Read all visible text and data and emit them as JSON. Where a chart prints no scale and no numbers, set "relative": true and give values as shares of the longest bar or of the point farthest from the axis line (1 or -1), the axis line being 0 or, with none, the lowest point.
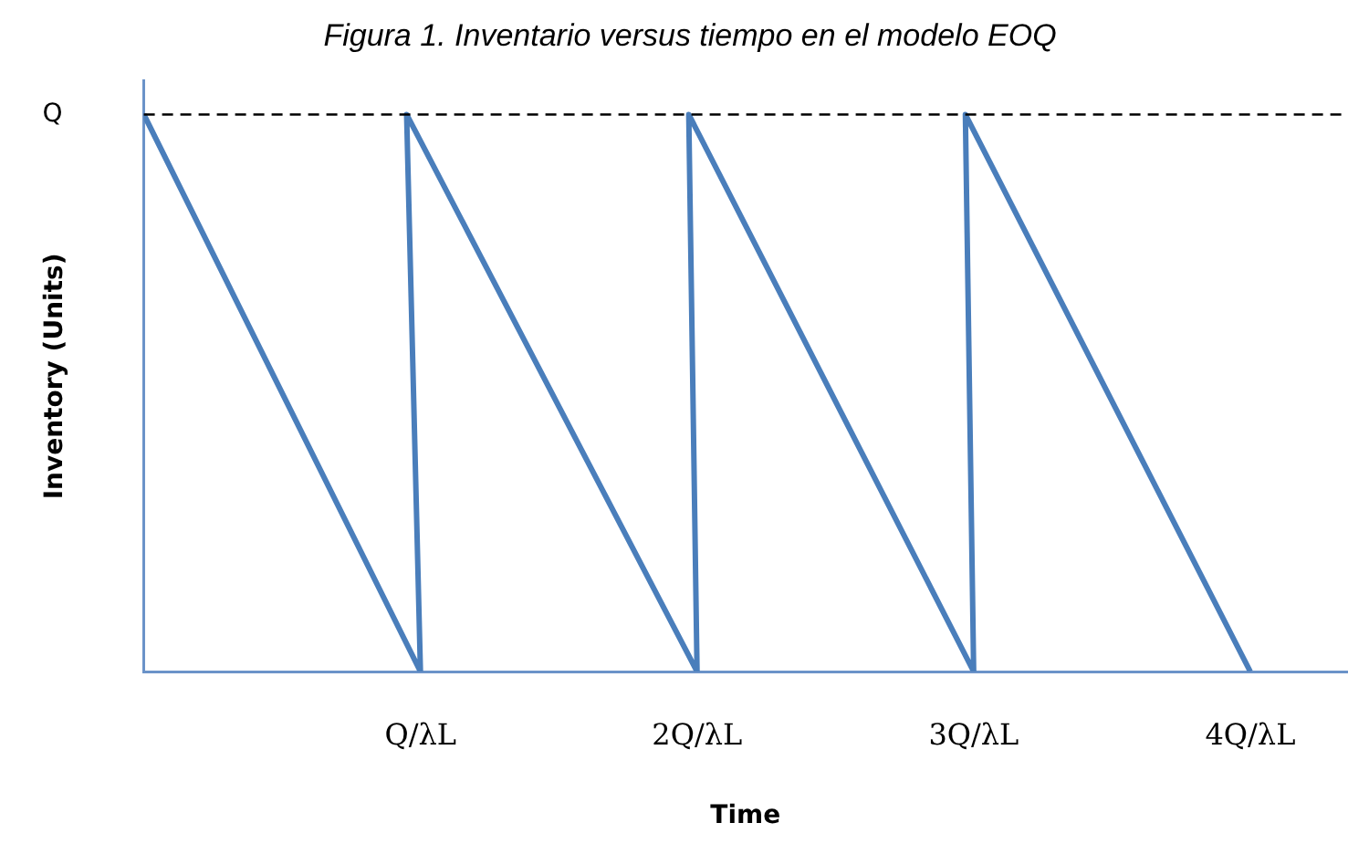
{
  "chart_data": {
    "type": "line",
    "title": "Figura 1. Inventario versus tiempo en el modelo EOQ",
    "xlabel": "Time",
    "ylabel": "Inventory (Units)",
    "relative": true,
    "x": [
      0,
      1,
      0.95,
      2,
      1.97,
      3,
      2.97,
      4
    ],
    "series": [
      {
        "color": "#4a7ebb",
        "values": [
          1,
          0,
          1,
          0,
          1,
          0,
          1,
          0
        ]
      }
    ],
    "xlim": [
      0,
      4.35
    ],
    "xticks": [
      {
        "value": 1,
        "label": "Q/λL"
      },
      {
        "value": 2,
        "label": "2Q/λL"
      },
      {
        "value": 3,
        "label": "3Q/λL"
      },
      {
        "value": 4,
        "label": "4Q/λL"
      }
    ],
    "ref_lines": [
      {
        "axis": "y",
        "value": 1,
        "label": "Q",
        "color": "#000000",
        "line_style": "dashed"
      }
    ],
    "grid": false,
    "legend": false,
    "marker": "none",
    "line_style": "solid"
  }
}
